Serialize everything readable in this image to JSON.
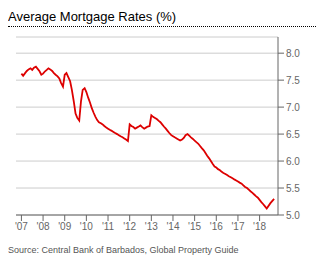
{
  "chart_data": {
    "type": "line",
    "title": "Average Mortgage Rates (%)",
    "annotations": [
      "Source: Central Bank of Barbados, Global Property Guide"
    ],
    "color": "#dd0000",
    "grid": true,
    "xlim": [
      2006.75,
      2018.85
    ],
    "xticks": [
      {
        "value": 2007,
        "label": "'07"
      },
      {
        "value": 2008,
        "label": "'08"
      },
      {
        "value": 2009,
        "label": "'09"
      },
      {
        "value": 2010,
        "label": "'10"
      },
      {
        "value": 2011,
        "label": "'11"
      },
      {
        "value": 2012,
        "label": "'12"
      },
      {
        "value": 2013,
        "label": "'13"
      },
      {
        "value": 2014,
        "label": "'14"
      },
      {
        "value": 2015,
        "label": "'15"
      },
      {
        "value": 2016,
        "label": "'16"
      },
      {
        "value": 2017,
        "label": "'17"
      },
      {
        "value": 2018,
        "label": "'18"
      }
    ],
    "ylim": [
      5.0,
      8.3
    ],
    "yticks": [
      {
        "value": 5.0,
        "label": "5.0"
      },
      5.5,
      {
        "value": 6.0,
        "label": "6.0"
      },
      6.5,
      {
        "value": 7.0,
        "label": "7.0"
      },
      7.5,
      {
        "value": 8.0,
        "label": "8.0"
      }
    ],
    "x": [
      2007.0,
      2007.08,
      2007.17,
      2007.25,
      2007.33,
      2007.42,
      2007.5,
      2007.58,
      2007.67,
      2007.75,
      2007.83,
      2007.92,
      2008.0,
      2008.08,
      2008.17,
      2008.25,
      2008.33,
      2008.42,
      2008.5,
      2008.58,
      2008.67,
      2008.75,
      2008.83,
      2008.92,
      2009.0,
      2009.08,
      2009.17,
      2009.25,
      2009.33,
      2009.42,
      2009.5,
      2009.58,
      2009.67,
      2009.75,
      2009.83,
      2009.92,
      2010.0,
      2010.08,
      2010.17,
      2010.25,
      2010.33,
      2010.42,
      2010.5,
      2010.58,
      2010.67,
      2010.75,
      2010.83,
      2010.92,
      2011.0,
      2011.08,
      2011.17,
      2011.25,
      2011.33,
      2011.42,
      2011.5,
      2011.58,
      2011.67,
      2011.75,
      2011.83,
      2011.92,
      2012.0,
      2012.08,
      2012.17,
      2012.25,
      2012.33,
      2012.42,
      2012.5,
      2012.58,
      2012.67,
      2012.75,
      2012.83,
      2012.92,
      2013.0,
      2013.08,
      2013.17,
      2013.25,
      2013.33,
      2013.42,
      2013.5,
      2013.58,
      2013.67,
      2013.75,
      2013.83,
      2013.92,
      2014.0,
      2014.08,
      2014.17,
      2014.25,
      2014.33,
      2014.42,
      2014.5,
      2014.58,
      2014.67,
      2014.75,
      2014.83,
      2014.92,
      2015.0,
      2015.08,
      2015.17,
      2015.25,
      2015.33,
      2015.42,
      2015.5,
      2015.58,
      2015.67,
      2015.75,
      2015.83,
      2015.92,
      2016.0,
      2016.08,
      2016.17,
      2016.25,
      2016.33,
      2016.42,
      2016.5,
      2016.58,
      2016.67,
      2016.75,
      2016.83,
      2016.92,
      2017.0,
      2017.08,
      2017.17,
      2017.25,
      2017.33,
      2017.42,
      2017.5,
      2017.58,
      2017.67,
      2017.75,
      2017.83,
      2017.92,
      2018.0,
      2018.08,
      2018.17,
      2018.25,
      2018.33,
      2018.5,
      2018.67
    ],
    "values": [
      7.62,
      7.58,
      7.63,
      7.67,
      7.7,
      7.72,
      7.69,
      7.73,
      7.75,
      7.71,
      7.67,
      7.6,
      7.62,
      7.66,
      7.69,
      7.72,
      7.7,
      7.67,
      7.63,
      7.6,
      7.57,
      7.53,
      7.45,
      7.38,
      7.6,
      7.63,
      7.55,
      7.48,
      7.32,
      7.1,
      6.88,
      6.8,
      6.75,
      7.1,
      7.32,
      7.35,
      7.28,
      7.18,
      7.08,
      6.98,
      6.9,
      6.82,
      6.76,
      6.72,
      6.7,
      6.68,
      6.65,
      6.62,
      6.6,
      6.58,
      6.56,
      6.54,
      6.52,
      6.5,
      6.48,
      6.46,
      6.44,
      6.42,
      6.4,
      6.37,
      6.68,
      6.65,
      6.63,
      6.6,
      6.62,
      6.64,
      6.66,
      6.63,
      6.6,
      6.62,
      6.64,
      6.65,
      6.85,
      6.82,
      6.8,
      6.78,
      6.75,
      6.72,
      6.68,
      6.64,
      6.6,
      6.56,
      6.52,
      6.48,
      6.46,
      6.44,
      6.42,
      6.4,
      6.38,
      6.4,
      6.43,
      6.48,
      6.5,
      6.47,
      6.44,
      6.41,
      6.38,
      6.35,
      6.32,
      6.28,
      6.24,
      6.2,
      6.15,
      6.1,
      6.05,
      6.0,
      5.95,
      5.9,
      5.88,
      5.85,
      5.83,
      5.8,
      5.78,
      5.76,
      5.74,
      5.72,
      5.7,
      5.68,
      5.66,
      5.64,
      5.62,
      5.6,
      5.58,
      5.55,
      5.52,
      5.5,
      5.47,
      5.44,
      5.41,
      5.38,
      5.35,
      5.32,
      5.28,
      5.24,
      5.2,
      5.16,
      5.12,
      5.22,
      5.3
    ]
  }
}
